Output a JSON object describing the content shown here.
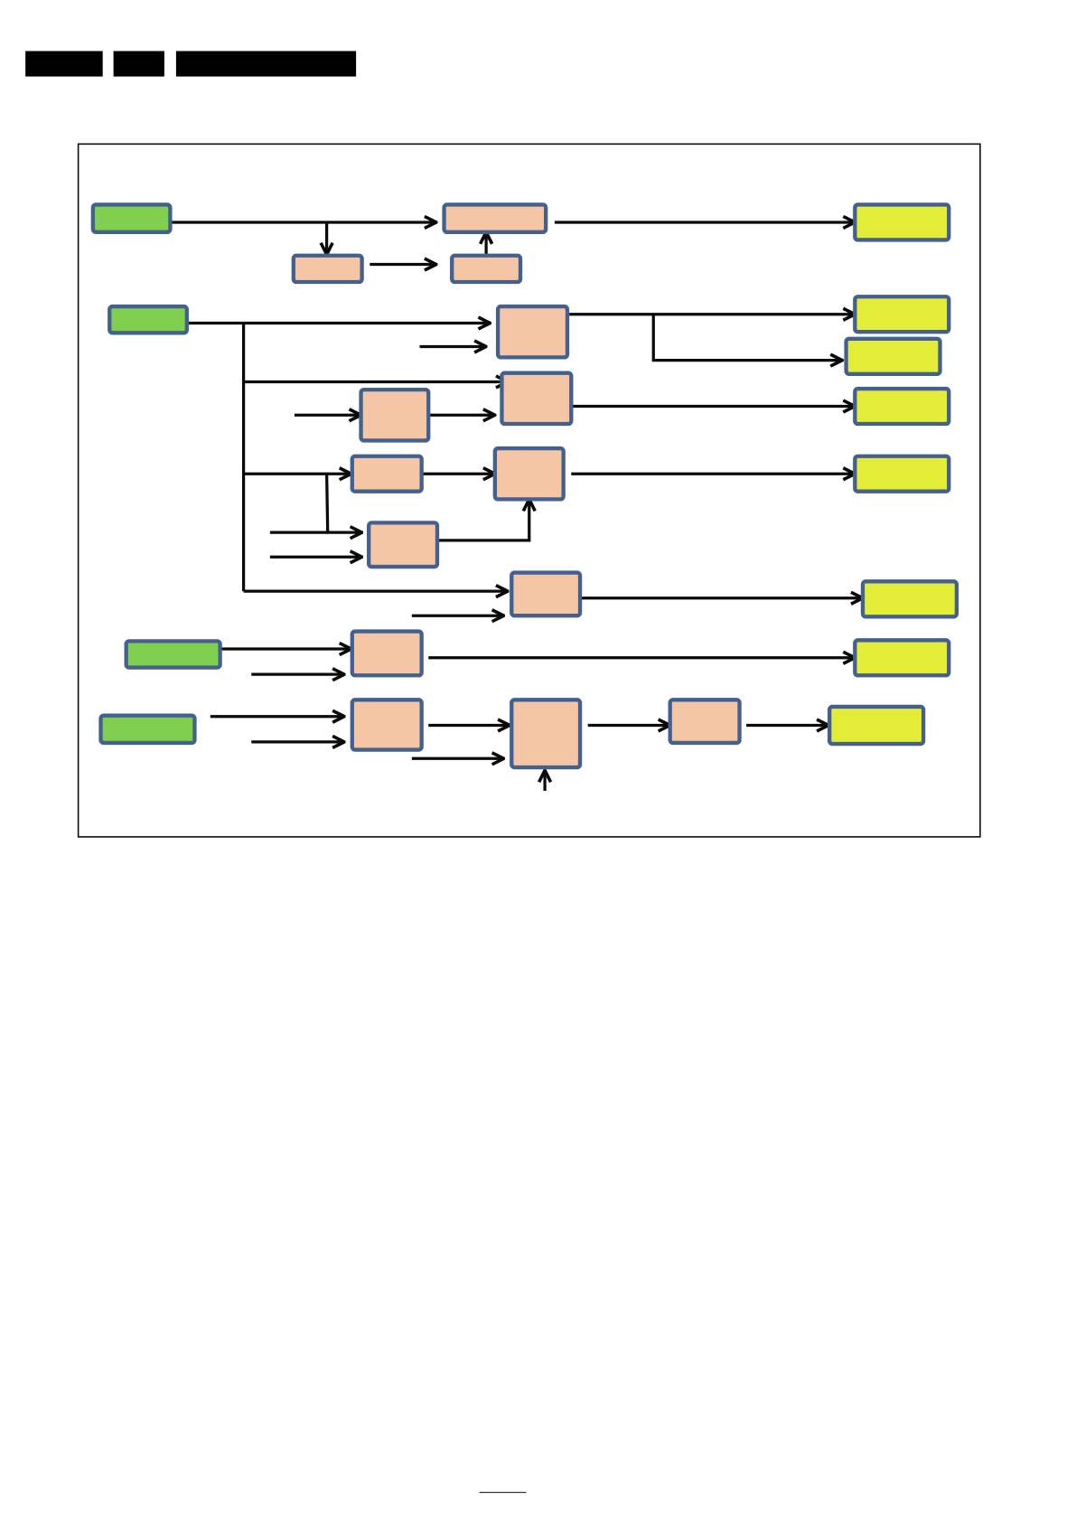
{
  "page": {
    "header_bars": [
      "redacted-1",
      "redacted-2",
      "redacted-3"
    ],
    "header_bar_color": "#000000"
  },
  "diagram": {
    "frame_color": "#111111",
    "box_border_color": "#43608f",
    "colors": {
      "input": "#80cf4e",
      "process": "#f5c6a5",
      "output": "#e3ec36",
      "connector": "#0a0a0a"
    },
    "labels_visible": false
  }
}
